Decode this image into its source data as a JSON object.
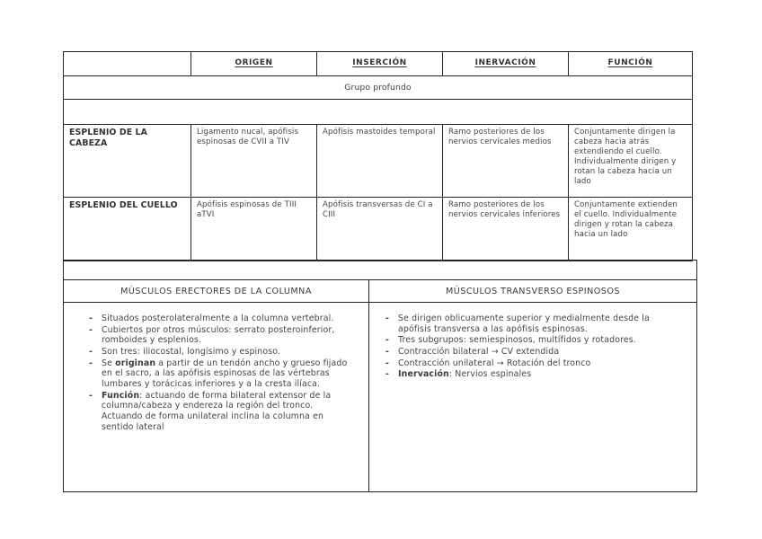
{
  "colors": {
    "border": "#262626",
    "text": "#454545",
    "background": "#ffffff"
  },
  "table1": {
    "headers": [
      "",
      "ORIGEN",
      "INSERCIÓN",
      "INERVACIÓN",
      "FUNCIÓN"
    ],
    "group_label": "Grupo profundo",
    "rows": [
      {
        "name": "ESPLENIO DE LA CABEZA",
        "origen": "Ligamento nucal, apófisis espinosas de CVII a TIV",
        "insercion": "Apófisis mastoides temporal",
        "inervacion": "Ramo posteriores de los nervios cervicales medios",
        "funcion": "Conjuntamente dirigen la cabeza hacia atrás extendiendo el cuello. Individualmente dirigen y rotan la cabeza hacia un lado"
      },
      {
        "name": "ESPLENIO DEL CUELLO",
        "origen": "Apófisis espinosas de TIII aTVI",
        "insercion": "Apófisis transversas de CI a CIII",
        "inervacion": "Ramo posteriores de los nervios cervicales inferiores",
        "funcion": "Conjuntamente extienden el cuello. Individualmente dirigen y rotan la cabeza hacia un lado"
      }
    ]
  },
  "table2": {
    "left_header": "MÚSCULOS ERECTORES DE LA COLUMNA",
    "right_header": "MÚSCULOS TRANSVERSO ESPINOSOS",
    "bullet_marker": "-",
    "left_items": [
      [
        {
          "t": "Situados posterolateralmente a la columna vertebral."
        }
      ],
      [
        {
          "t": "Cubiertos por otros músculos: serrato posteroinferior, romboides y esplenios."
        }
      ],
      [
        {
          "t": "Son tres: iliocostal, longísimo y espinoso."
        }
      ],
      [
        {
          "t": "Se "
        },
        {
          "t": "originan",
          "b": true
        },
        {
          "t": " a partir de un tendón ancho y grueso fijado en el sacro, a las apófisis espinosas de las vértebras lumbares y torácicas inferiores y a la cresta ilíaca."
        }
      ],
      [
        {
          "t": "Función",
          "b": true
        },
        {
          "t": ": actuando de forma bilateral extensor de la columna/cabeza y endereza la región del tronco. Actuando de forma unilateral inclina la columna en sentido lateral"
        }
      ]
    ],
    "right_items": [
      [
        {
          "t": "Se dirigen oblicuamente superior y medialmente desde la apófisis transversa a las apófisis espinosas."
        }
      ],
      [
        {
          "t": "Tres subgrupos: semiespinosos, multífidos y rotadores."
        }
      ],
      [
        {
          "t": "Contracción bilateral  → CV extendida"
        }
      ],
      [
        {
          "t": "Contracción unilateral → Rotación del tronco"
        }
      ],
      [
        {
          "t": "Inervación",
          "b": true
        },
        {
          "t": ": Nervios espinales"
        }
      ]
    ]
  }
}
